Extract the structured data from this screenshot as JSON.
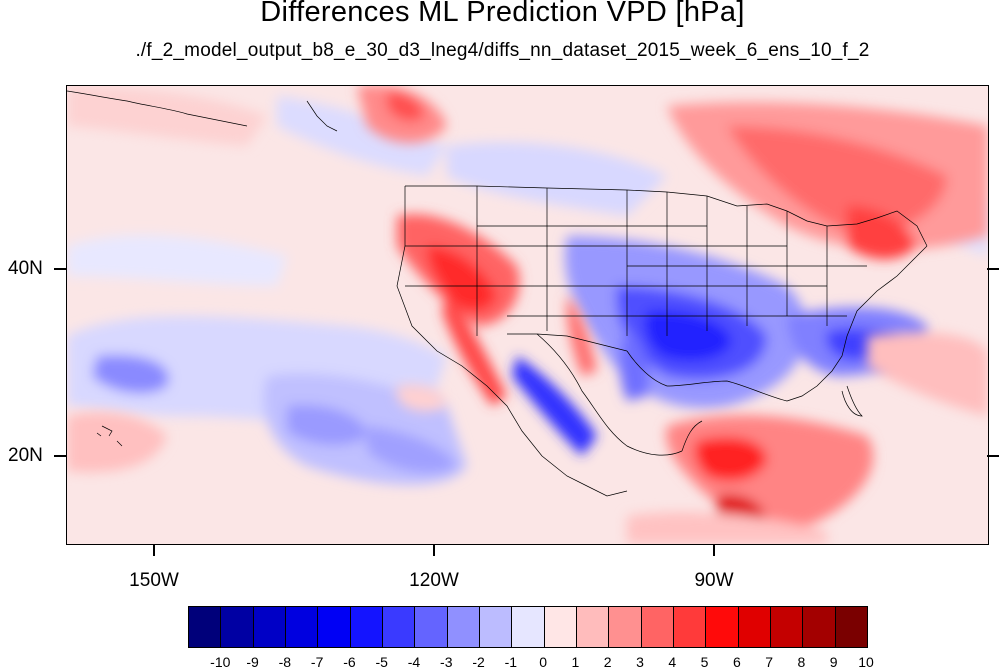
{
  "title": "Differences ML Prediction VPD [hPa]",
  "subtitle": "./f_2_model_output_b8_e_30_d3_lneg4/diffs_nn_dataset_2015_week_6_ens_10_f_2",
  "lat_labels": [
    "40N",
    "20N"
  ],
  "lon_labels": [
    "150W",
    "120W",
    "90W"
  ],
  "colorbar": {
    "labels": [
      "-10",
      "-9",
      "-8",
      "-7",
      "-6",
      "-5",
      "-4",
      "-3",
      "-2",
      "-1",
      "0",
      "1",
      "2",
      "3",
      "4",
      "5",
      "6",
      "7",
      "8",
      "9",
      "10"
    ],
    "colors": [
      "#00007a",
      "#0000a3",
      "#0000c6",
      "#0000e0",
      "#0000f5",
      "#1414ff",
      "#3a3aff",
      "#6464ff",
      "#9090ff",
      "#bcbcff",
      "#e6e6ff",
      "#ffe6e6",
      "#ffbcbc",
      "#ff9090",
      "#ff6464",
      "#ff3a3a",
      "#ff0a0a",
      "#e00000",
      "#c40000",
      "#a30000",
      "#7a0000"
    ]
  }
}
